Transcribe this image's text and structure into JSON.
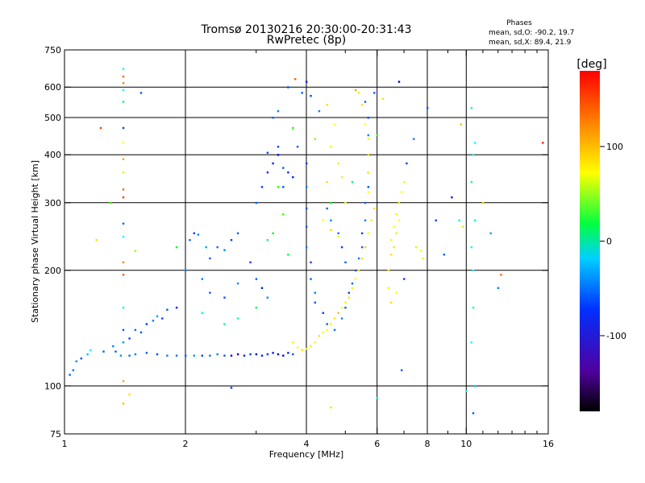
{
  "chart_data": {
    "type": "scatter",
    "title": "Tromsø 20130216 20:30:00-20:31:43",
    "subtitle": "RwPretec (8p)",
    "xlabel": "Frequency [MHz]",
    "ylabel": "Stationary phase Virtual Height [km]",
    "x_scale": "log",
    "y_scale": "log",
    "xlim": [
      1,
      16
    ],
    "ylim": [
      75,
      750
    ],
    "x_ticks": [
      1,
      2,
      4,
      6,
      8,
      10,
      16
    ],
    "x_minor_ticks": [
      3,
      5,
      7,
      9,
      11,
      12,
      13,
      14,
      15
    ],
    "y_ticks": [
      75,
      100,
      200,
      300,
      400,
      500,
      600,
      750
    ],
    "x_gridlines": [
      2,
      4,
      6,
      8,
      10
    ],
    "y_gridlines": [
      100,
      200,
      300,
      400,
      500,
      600
    ],
    "grid": true,
    "phase_stats": {
      "heading": "Phases",
      "line_o": "mean, sd,O: -90.2, 19.7",
      "line_x": "mean, sd,X:  89.4, 21.9"
    },
    "colorbar": {
      "label": "[deg]",
      "ticks": [
        100,
        0,
        -100
      ],
      "range": [
        -180,
        180
      ],
      "colormap": "rainbow"
    },
    "series": [
      {
        "points": [
          [
            1.03,
            107,
            -110
          ],
          [
            1.05,
            110,
            -105
          ],
          [
            1.07,
            116,
            -100
          ],
          [
            1.1,
            118,
            -115
          ],
          [
            1.14,
            121,
            -80
          ],
          [
            1.16,
            124,
            -60
          ],
          [
            1.25,
            123,
            -110
          ],
          [
            1.32,
            127,
            -100
          ],
          [
            1.4,
            130,
            -95
          ],
          [
            1.45,
            133,
            -120
          ],
          [
            1.5,
            140,
            -105
          ],
          [
            1.55,
            138,
            -110
          ],
          [
            1.6,
            145,
            -125
          ],
          [
            1.66,
            148,
            -100
          ],
          [
            1.7,
            152,
            -90
          ],
          [
            1.75,
            150,
            -120
          ],
          [
            1.8,
            158,
            -110
          ],
          [
            1.9,
            160,
            -130
          ],
          [
            1.34,
            123,
            -110
          ],
          [
            1.38,
            120,
            -95
          ],
          [
            1.45,
            120,
            -105
          ],
          [
            1.5,
            121,
            -100
          ],
          [
            1.6,
            122,
            -110
          ],
          [
            1.7,
            121,
            -120
          ],
          [
            1.8,
            120,
            -100
          ],
          [
            1.9,
            120,
            -105
          ],
          [
            2.0,
            120,
            -110
          ],
          [
            2.1,
            120,
            -95
          ],
          [
            2.2,
            120,
            -120
          ],
          [
            2.3,
            120,
            -105
          ],
          [
            2.4,
            121,
            -100
          ],
          [
            2.5,
            120,
            -110
          ],
          [
            2.6,
            120,
            -140
          ],
          [
            2.7,
            121,
            -150
          ],
          [
            2.8,
            120,
            -130
          ],
          [
            2.9,
            121,
            -120
          ],
          [
            3.0,
            121,
            -145
          ],
          [
            3.1,
            120,
            -130
          ],
          [
            3.2,
            121,
            -125
          ],
          [
            3.3,
            122,
            -135
          ],
          [
            3.4,
            121,
            -150
          ],
          [
            3.5,
            120,
            -140
          ],
          [
            3.6,
            122,
            -130
          ],
          [
            3.7,
            121,
            -110
          ],
          [
            2.0,
            200,
            -100
          ],
          [
            2.05,
            240,
            -110
          ],
          [
            2.1,
            250,
            -120
          ],
          [
            2.15,
            248,
            -100
          ],
          [
            2.25,
            230,
            -90
          ],
          [
            2.3,
            215,
            -110
          ],
          [
            2.4,
            230,
            -105
          ],
          [
            2.5,
            226,
            -100
          ],
          [
            2.6,
            240,
            -120
          ],
          [
            2.7,
            250,
            -110
          ],
          [
            2.2,
            190,
            -100
          ],
          [
            2.3,
            175,
            -110
          ],
          [
            2.5,
            170,
            -115
          ],
          [
            2.7,
            185,
            -95
          ],
          [
            2.9,
            210,
            -120
          ],
          [
            3.0,
            190,
            -110
          ],
          [
            3.1,
            180,
            -130
          ],
          [
            3.2,
            170,
            -100
          ],
          [
            3.0,
            300,
            -110
          ],
          [
            3.1,
            330,
            -120
          ],
          [
            3.2,
            360,
            -125
          ],
          [
            3.3,
            380,
            -130
          ],
          [
            3.4,
            400,
            -140
          ],
          [
            3.2,
            405,
            -115
          ],
          [
            3.4,
            420,
            -120
          ],
          [
            3.5,
            370,
            -110
          ],
          [
            3.6,
            360,
            -125
          ],
          [
            3.7,
            350,
            -130
          ],
          [
            3.5,
            330,
            -115
          ],
          [
            3.3,
            500,
            -110
          ],
          [
            3.4,
            520,
            -100
          ],
          [
            3.6,
            600,
            -120
          ],
          [
            3.9,
            580,
            -110
          ],
          [
            4.1,
            570,
            -120
          ],
          [
            4.3,
            520,
            -100
          ],
          [
            3.8,
            420,
            -110
          ],
          [
            4.0,
            380,
            -120
          ],
          [
            4.0,
            330,
            -100
          ],
          [
            4.0,
            290,
            -115
          ],
          [
            4.0,
            260,
            -110
          ],
          [
            4.0,
            230,
            -100
          ],
          [
            4.1,
            210,
            -120
          ],
          [
            4.1,
            190,
            -110
          ],
          [
            4.2,
            175,
            -100
          ],
          [
            4.2,
            165,
            -115
          ],
          [
            4.4,
            155,
            -120
          ],
          [
            4.5,
            145,
            -110
          ],
          [
            4.7,
            140,
            -105
          ],
          [
            4.9,
            150,
            -100
          ],
          [
            5.0,
            160,
            -110
          ],
          [
            5.1,
            175,
            -120
          ],
          [
            5.2,
            185,
            -110
          ],
          [
            5.3,
            200,
            -115
          ],
          [
            5.4,
            215,
            -100
          ],
          [
            5.5,
            230,
            -110
          ],
          [
            5.5,
            250,
            -120
          ],
          [
            5.6,
            270,
            -100
          ],
          [
            5.6,
            300,
            -110
          ],
          [
            5.7,
            330,
            -115
          ],
          [
            5.7,
            360,
            -120
          ],
          [
            5.7,
            400,
            -110
          ],
          [
            5.7,
            450,
            -100
          ],
          [
            5.7,
            500,
            -120
          ],
          [
            5.6,
            550,
            -110
          ],
          [
            5.0,
            210,
            -110
          ],
          [
            4.9,
            230,
            -120
          ],
          [
            4.8,
            250,
            -105
          ],
          [
            4.6,
            270,
            -100
          ],
          [
            4.5,
            290,
            -110
          ],
          [
            3.7,
            130,
            95
          ],
          [
            3.8,
            126,
            100
          ],
          [
            3.9,
            124,
            110
          ],
          [
            4.0,
            125,
            105
          ],
          [
            4.1,
            127,
            90
          ],
          [
            4.2,
            130,
            100
          ],
          [
            4.3,
            135,
            110
          ],
          [
            4.4,
            138,
            95
          ],
          [
            4.5,
            140,
            100
          ],
          [
            4.6,
            145,
            105
          ],
          [
            4.7,
            150,
            110
          ],
          [
            4.8,
            155,
            120
          ],
          [
            4.9,
            160,
            100
          ],
          [
            5.0,
            165,
            105
          ],
          [
            5.1,
            170,
            110
          ],
          [
            5.2,
            180,
            95
          ],
          [
            5.3,
            190,
            100
          ],
          [
            5.4,
            200,
            105
          ],
          [
            5.5,
            215,
            110
          ],
          [
            5.6,
            230,
            115
          ],
          [
            5.7,
            250,
            100
          ],
          [
            5.8,
            270,
            105
          ],
          [
            5.9,
            290,
            110
          ],
          [
            5.7,
            320,
            100
          ],
          [
            5.7,
            360,
            105
          ],
          [
            5.7,
            400,
            110
          ],
          [
            5.7,
            440,
            95
          ],
          [
            5.6,
            480,
            100
          ],
          [
            5.5,
            540,
            110
          ],
          [
            5.4,
            580,
            105
          ],
          [
            4.5,
            540,
            110
          ],
          [
            4.7,
            480,
            100
          ],
          [
            4.6,
            420,
            95
          ],
          [
            4.8,
            380,
            105
          ],
          [
            4.5,
            340,
            110
          ],
          [
            4.4,
            270,
            100
          ],
          [
            4.6,
            255,
            110
          ],
          [
            4.8,
            245,
            95
          ],
          [
            5.0,
            300,
            100
          ],
          [
            4.9,
            350,
            105
          ],
          [
            6.4,
            200,
            100
          ],
          [
            6.5,
            220,
            110
          ],
          [
            6.5,
            240,
            95
          ],
          [
            6.6,
            260,
            100
          ],
          [
            6.7,
            280,
            105
          ],
          [
            6.8,
            300,
            110
          ],
          [
            6.9,
            320,
            100
          ],
          [
            7.0,
            340,
            95
          ],
          [
            6.7,
            250,
            105
          ],
          [
            6.6,
            230,
            110
          ],
          [
            6.8,
            270,
            100
          ],
          [
            6.4,
            180,
            105
          ],
          [
            6.5,
            165,
            110
          ],
          [
            6.7,
            175,
            100
          ],
          [
            7.5,
            230,
            90
          ],
          [
            7.7,
            225,
            100
          ],
          [
            7.8,
            215,
            95
          ],
          [
            3.4,
            330,
            30
          ],
          [
            3.5,
            280,
            40
          ],
          [
            3.3,
            250,
            20
          ],
          [
            3.6,
            220,
            -10
          ],
          [
            3.2,
            240,
            -20
          ],
          [
            3.0,
            160,
            0
          ],
          [
            2.7,
            150,
            -40
          ],
          [
            2.5,
            145,
            -30
          ],
          [
            2.2,
            155,
            -50
          ],
          [
            1.9,
            230,
            10
          ],
          [
            4.2,
            440,
            60
          ],
          [
            4.6,
            300,
            20
          ],
          [
            5.2,
            340,
            -10
          ],
          [
            6.0,
            450,
            40
          ],
          [
            3.7,
            470,
            30
          ],
          [
            1.4,
            670,
            -50
          ],
          [
            1.4,
            640,
            150
          ],
          [
            1.4,
            615,
            140
          ],
          [
            1.4,
            590,
            -60
          ],
          [
            1.4,
            550,
            -10
          ],
          [
            1.4,
            470,
            -120
          ],
          [
            1.4,
            430,
            100
          ],
          [
            1.4,
            390,
            130
          ],
          [
            1.4,
            360,
            80
          ],
          [
            1.4,
            325,
            150
          ],
          [
            1.4,
            310,
            160
          ],
          [
            1.4,
            265,
            -110
          ],
          [
            1.4,
            245,
            -60
          ],
          [
            1.4,
            210,
            140
          ],
          [
            1.4,
            195,
            150
          ],
          [
            1.4,
            160,
            -40
          ],
          [
            1.4,
            140,
            -110
          ],
          [
            1.4,
            103,
            130
          ],
          [
            1.4,
            90,
            120
          ],
          [
            1.23,
            470,
            160
          ],
          [
            1.3,
            300,
            40
          ],
          [
            1.55,
            580,
            -110
          ],
          [
            1.45,
            95,
            110
          ],
          [
            10.3,
            530,
            -40
          ],
          [
            10.5,
            430,
            -60
          ],
          [
            10.4,
            400,
            -50
          ],
          [
            10.3,
            340,
            -40
          ],
          [
            10.5,
            270,
            -30
          ],
          [
            10.3,
            230,
            -50
          ],
          [
            10.4,
            200,
            -60
          ],
          [
            10.4,
            160,
            -40
          ],
          [
            10.3,
            130,
            -50
          ],
          [
            10.5,
            100,
            -80
          ],
          [
            10.4,
            85,
            -110
          ],
          [
            9.6,
            270,
            -40
          ],
          [
            9.7,
            480,
            120
          ],
          [
            9.8,
            260,
            110
          ],
          [
            10.0,
            97,
            -50
          ],
          [
            11.0,
            300,
            110
          ],
          [
            12.2,
            195,
            150
          ],
          [
            15.5,
            430,
            170
          ],
          [
            8.0,
            530,
            -110
          ],
          [
            6.8,
            620,
            -140
          ],
          [
            7.0,
            190,
            -120
          ],
          [
            6.9,
            110,
            -110
          ],
          [
            6.0,
            93,
            -30
          ],
          [
            4.6,
            88,
            110
          ],
          [
            2.6,
            99,
            -120
          ],
          [
            1.5,
            225,
            70
          ],
          [
            1.2,
            240,
            110
          ],
          [
            3.75,
            630,
            150
          ],
          [
            4.0,
            620,
            -130
          ],
          [
            5.9,
            580,
            -110
          ],
          [
            6.2,
            560,
            110
          ],
          [
            5.3,
            590,
            130
          ],
          [
            8.4,
            270,
            -120
          ],
          [
            8.8,
            220,
            -110
          ],
          [
            9.2,
            310,
            -130
          ],
          [
            7.4,
            440,
            -100
          ],
          [
            7.1,
            380,
            -120
          ],
          [
            11.5,
            250,
            -90
          ],
          [
            12.0,
            180,
            -100
          ]
        ]
      }
    ]
  }
}
